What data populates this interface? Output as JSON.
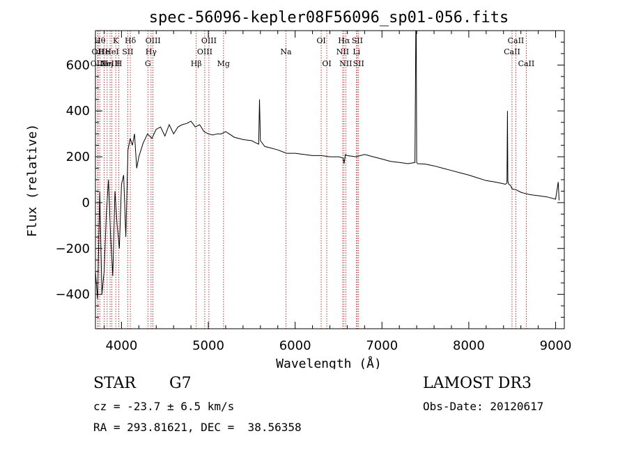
{
  "chart_data": {
    "type": "line",
    "title": "spec-56096-kepler08F56096_sp01-056.fits",
    "xlabel": "Wavelength (Å)",
    "ylabel": "Flux (relative)",
    "xlim": [
      3700,
      9100
    ],
    "ylim": [
      -550,
      750
    ],
    "xticks": [
      4000,
      5000,
      6000,
      7000,
      8000,
      9000
    ],
    "yticks": [
      -400,
      -200,
      0,
      200,
      400,
      600
    ],
    "xminor_step": 200,
    "yminor_step": 50,
    "line_color": "#000000",
    "marker_color": "#b00000",
    "series": [
      {
        "name": "flux",
        "x": [
          3700,
          3725,
          3750,
          3775,
          3800,
          3825,
          3850,
          3875,
          3900,
          3925,
          3950,
          3975,
          4000,
          4025,
          4050,
          4075,
          4100,
          4125,
          4150,
          4175,
          4200,
          4250,
          4300,
          4350,
          4400,
          4450,
          4500,
          4550,
          4600,
          4650,
          4700,
          4750,
          4800,
          4850,
          4900,
          4950,
          5000,
          5050,
          5100,
          5150,
          5200,
          5300,
          5400,
          5500,
          5550,
          5580,
          5590,
          5600,
          5650,
          5700,
          5800,
          5900,
          6000,
          6100,
          6200,
          6300,
          6400,
          6500,
          6550,
          6563,
          6580,
          6600,
          6700,
          6800,
          6900,
          7000,
          7100,
          7200,
          7300,
          7380,
          7390,
          7395,
          7400,
          7410,
          7500,
          7600,
          7700,
          7800,
          7900,
          8000,
          8100,
          8200,
          8300,
          8400,
          8420,
          8440,
          8445,
          8450,
          8460,
          8480,
          8500,
          8550,
          8600,
          8650,
          8700,
          8800,
          8900,
          9000,
          9030,
          9040
        ],
        "y": [
          -300,
          -420,
          50,
          -400,
          -300,
          -50,
          100,
          -150,
          -320,
          50,
          -100,
          -200,
          80,
          120,
          -150,
          230,
          280,
          250,
          300,
          150,
          200,
          260,
          300,
          280,
          320,
          330,
          290,
          340,
          300,
          330,
          340,
          345,
          355,
          330,
          340,
          310,
          300,
          295,
          300,
          300,
          310,
          285,
          275,
          270,
          260,
          255,
          450,
          270,
          245,
          240,
          230,
          215,
          215,
          210,
          205,
          205,
          200,
          200,
          195,
          170,
          210,
          205,
          200,
          210,
          200,
          190,
          180,
          175,
          170,
          175,
          760,
          750,
          175,
          170,
          168,
          160,
          150,
          140,
          130,
          120,
          108,
          96,
          90,
          82,
          80,
          85,
          400,
          95,
          80,
          75,
          60,
          55,
          45,
          40,
          35,
          30,
          25,
          15,
          90,
          10
        ]
      }
    ],
    "lines": [
      {
        "x": 3750,
        "label": "Hθ",
        "row": 1
      },
      {
        "x": 3727,
        "label": "OII",
        "row": 2
      },
      {
        "x": 3730,
        "label": "OIII",
        "row": 3
      },
      {
        "x": 3800,
        "label": "He",
        "row": 2
      },
      {
        "x": 3835,
        "label": "Hη",
        "row": 3
      },
      {
        "x": 3869,
        "label": "NeIII",
        "row": 3
      },
      {
        "x": 3889,
        "label": "HeI",
        "row": 2
      },
      {
        "x": 3934,
        "label": "K",
        "row": 1
      },
      {
        "x": 3969,
        "label": "H",
        "row": 3
      },
      {
        "x": 4072,
        "label": "SII",
        "row": 2
      },
      {
        "x": 4102,
        "label": "Hδ",
        "row": 1
      },
      {
        "x": 4304,
        "label": "G",
        "row": 3
      },
      {
        "x": 4341,
        "label": "Hγ",
        "row": 2
      },
      {
        "x": 4363,
        "label": "OIII",
        "row": 1
      },
      {
        "x": 4861,
        "label": "Hβ",
        "row": 3
      },
      {
        "x": 4959,
        "label": "OIII",
        "row": 2
      },
      {
        "x": 5007,
        "label": "OIII",
        "row": 1
      },
      {
        "x": 5175,
        "label": "Mg",
        "row": 3
      },
      {
        "x": 5894,
        "label": "Na",
        "row": 2
      },
      {
        "x": 6300,
        "label": "OI",
        "row": 1
      },
      {
        "x": 6364,
        "label": "OI",
        "row": 3
      },
      {
        "x": 6548,
        "label": "NII",
        "row": 2
      },
      {
        "x": 6563,
        "label": "Hα",
        "row": 1
      },
      {
        "x": 6583,
        "label": "NII",
        "row": 3
      },
      {
        "x": 6707,
        "label": "Li",
        "row": 2
      },
      {
        "x": 6716,
        "label": "SII",
        "row": 1
      },
      {
        "x": 6731,
        "label": "SII",
        "row": 3
      },
      {
        "x": 8498,
        "label": "CaII",
        "row": 2
      },
      {
        "x": 8542,
        "label": "CaII",
        "row": 1
      },
      {
        "x": 8662,
        "label": "CaII",
        "row": 3
      }
    ]
  },
  "info": {
    "class": "STAR",
    "subclass": "G7",
    "survey": "LAMOST DR3",
    "cz": "cz = -23.7 ± 6.5 km/s",
    "obs_date": "Obs-Date: 20120617",
    "coords": "RA = 293.81621, DEC =  38.56358"
  }
}
